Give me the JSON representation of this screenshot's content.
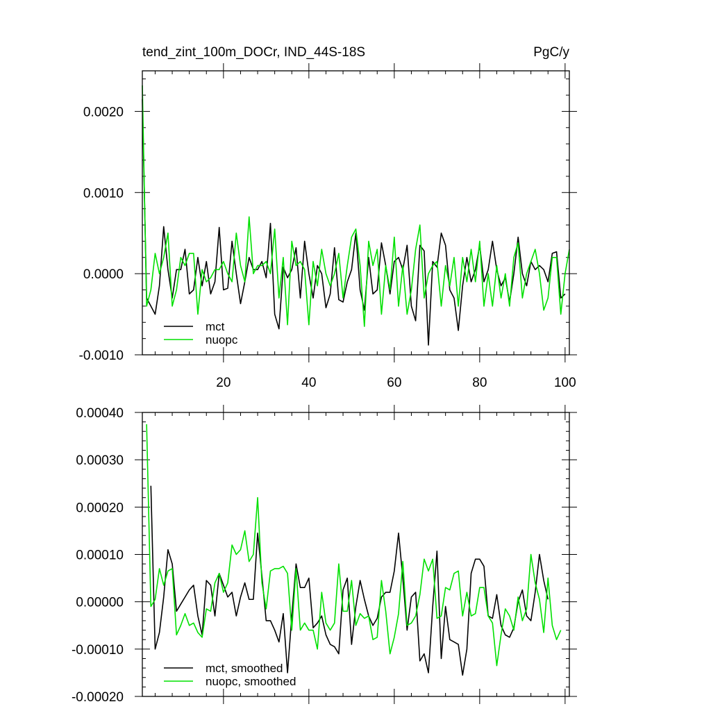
{
  "chart_data": [
    {
      "type": "line",
      "title": "tend_zint_100m_DOCr, IND_44S-18S",
      "units": "PgC/y",
      "xlim": [
        1,
        101
      ],
      "ylim": [
        -0.001,
        0.0025
      ],
      "xticks": [
        "20",
        "40",
        "60",
        "80",
        "100"
      ],
      "yticks": [
        "-0.0010",
        "0.0000",
        "0.0010",
        "0.0020"
      ],
      "legend_position": "bottom-left",
      "series": [
        {
          "name": "mct",
          "color": "#000000",
          "x_start": 1,
          "values": [
            0.00215,
            -0.0003,
            -0.0004,
            -0.0005,
            -0.00015,
            0.00058,
            5e-05,
            -0.0003,
            5e-05,
            5e-05,
            0.0003,
            -0.00025,
            -0.0002,
            0.0002,
            -0.00015,
            0.00015,
            -0.00025,
            -0.0001,
            0.00057,
            -0.0002,
            -0.00018,
            0.0004,
            0.0,
            -0.00037,
            -0.0001,
            0.0002,
            5e-05,
            5e-05,
            0.00015,
            -5e-05,
            0.00062,
            -0.0005,
            -0.00068,
            8e-05,
            -5e-05,
            5e-05,
            0.00032,
            -0.0003,
            0.0004,
            0.0,
            -0.0003,
            0.0001,
            0.0,
            -0.00042,
            -0.00025,
            0.00032,
            -0.00032,
            -0.00035,
            -0.0001,
            5e-05,
            0.0005,
            -0.0002,
            -0.00045,
            0.0002,
            -0.00025,
            -0.0002,
            0.00038,
            0.0001,
            -0.00025,
            0.00015,
            0.0002,
            5e-05,
            0.00035,
            -0.0004,
            -0.00058,
            0.00035,
            0.00028,
            -0.00088,
            0.00015,
            8e-05,
            0.0005,
            0.00035,
            -0.0002,
            -0.0003,
            -0.0007,
            -0.00015,
            0.0002,
            -0.0001,
            5e-05,
            0.00035,
            -0.0001,
            5e-05,
            0.0004,
            5e-05,
            -0.00015,
            -5e-05,
            -0.00035,
            0.0,
            0.00045,
            0.0,
            -0.00015,
            0.00015,
            5e-05,
            0.0001,
            5e-05,
            -0.0001,
            0.00025,
            0.00027,
            -0.0003,
            -0.00025
          ],
          "line_width": 1.6
        },
        {
          "name": "nuopc",
          "color": "#00e000",
          "x_start": 1,
          "values": [
            0.00232,
            -0.0004,
            -0.0002,
            0.00025,
            0.0,
            0.0002,
            0.0005,
            -0.0004,
            -0.0002,
            0.0002,
            0.0001,
            0.00025,
            0.00025,
            -0.0005,
            5e-05,
            -0.0001,
            -5e-05,
            5e-05,
            5e-05,
            0.00015,
            0.0,
            -0.0001,
            0.0005,
            0.0001,
            -0.0001,
            0.0007,
            0.0,
            0.0001,
            0.0001,
            0.00015,
            0.0,
            0.00055,
            -0.0003,
            0.0002,
            -0.00063,
            0.0004,
            0.0001,
            0.00015,
            5e-05,
            -0.00063,
            0.00015,
            -0.00015,
            0.0003,
            0.0,
            -0.00015,
            0.0,
            0.00025,
            -0.0003,
            0.0001,
            0.00045,
            0.00055,
            0.0001,
            -0.00065,
            0.0004,
            0.0001,
            0.0003,
            -0.0005,
            0.0001,
            -0.0002,
            0.00045,
            -0.0004,
            0.0001,
            -0.0005,
            -0.0002,
            0.0003,
            0.0006,
            -0.0003,
            0.0,
            0.0001,
            0.00015,
            -0.0004,
            0.0001,
            -0.00015,
            0.0002,
            -0.0004,
            0.0002,
            -0.0001,
            0.0003,
            -0.0001,
            0.0004,
            -0.0004,
            0.0,
            -0.0004,
            0.0001,
            -0.0003,
            0.0,
            -0.0004,
            0.0002,
            0.00038,
            -0.0003,
            0.0,
            0.00015,
            0.0003,
            0.0,
            -0.00045,
            -0.0003,
            0.0002,
            0.0002,
            -0.0005,
            0.0,
            0.0003
          ],
          "line_width": 1.6
        }
      ]
    },
    {
      "type": "line",
      "xlim": [
        1,
        101
      ],
      "ylim": [
        -0.0002,
        0.0004
      ],
      "xticks": [
        "20",
        "40",
        "60",
        "80",
        "100"
      ],
      "show_xtick_labels": false,
      "yticks": [
        "-0.00020",
        "-0.00010",
        "0.00000",
        "0.00010",
        "0.00020",
        "0.00030",
        "0.00040"
      ],
      "legend_position": "bottom-left",
      "series": [
        {
          "name": "mct, smoothed",
          "color": "#000000",
          "x_start": 3,
          "values": [
            0.000245,
            -0.0001,
            -6.5e-05,
            1e-05,
            0.00011,
            8e-05,
            -2e-05,
            -5e-06,
            1e-05,
            2.5e-05,
            3.5e-05,
            -3e-05,
            -7e-05,
            4.5e-05,
            3.5e-05,
            -3e-05,
            6e-05,
            3.5e-05,
            1e-05,
            2e-05,
            -3e-05,
            1e-05,
            4e-05,
            5e-06,
            5e-06,
            0.000145,
            5.5e-05,
            -4e-05,
            -4e-05,
            -6e-05,
            -8.5e-05,
            -2.5e-05,
            -0.00015,
            -3e-05,
            8e-05,
            3e-05,
            3e-05,
            5e-05,
            -5.5e-05,
            -4.5e-05,
            -3e-05,
            -7e-05,
            -9e-05,
            -9.5e-05,
            -0.00011,
            2.5e-05,
            5e-05,
            -9e-05,
            -1e-05,
            4.5e-05,
            5e-06,
            -3e-05,
            -5e-05,
            -3.5e-05,
            1e-05,
            2e-05,
            2e-05,
            6.5e-05,
            0.000145,
            5e-05,
            -6e-05,
            1e-05,
            2e-05,
            -0.000125,
            -0.00011,
            -0.00015,
            -1e-05,
            0.000107,
            -0.00012,
            -1e-05,
            -8e-05,
            -8.5e-05,
            -9e-05,
            -0.000155,
            -0.0001,
            6e-05,
            9e-05,
            9e-05,
            7.5e-05,
            -3e-05,
            -3.5e-05,
            1.5e-05,
            -5e-05,
            -7e-05,
            -7.5e-05,
            -5.5e-05,
            0.0,
            2.5e-05,
            -3e-05,
            -4e-05,
            2e-05,
            0.0001,
            4.5e-05,
            5e-06
          ],
          "line_width": 1.6
        },
        {
          "name": "nuopc, smoothed",
          "color": "#00e000",
          "x_start": 2,
          "values": [
            0.000375,
            -1e-05,
            5e-06,
            7e-05,
            3.5e-05,
            6.5e-05,
            7e-05,
            -7e-05,
            -5e-05,
            -2.5e-05,
            -5e-05,
            -4.5e-05,
            -6.5e-05,
            -7.5e-05,
            -1.5e-05,
            -2e-05,
            4e-05,
            6e-05,
            2e-05,
            4e-05,
            0.00012,
            0.0001,
            0.00011,
            0.00015,
            8.5e-05,
            0.0001,
            0.00022,
            4e-05,
            -1.5e-05,
            6.5e-05,
            7e-05,
            7e-05,
            7.5e-05,
            6e-05,
            -6e-05,
            7e-05,
            -6e-05,
            -4.5e-05,
            -6e-05,
            -6e-05,
            -0.0001,
            2e-05,
            -4.5e-05,
            -6e-05,
            -4.5e-05,
            8e-05,
            -2e-05,
            -2e-05,
            4.5e-05,
            -5e-05,
            -2.5e-05,
            -3.5e-05,
            -3e-05,
            -8e-05,
            -7.5e-05,
            4.5e-05,
            -2e-05,
            -0.00011,
            -7.5e-05,
            -2.5e-05,
            8.5e-05,
            -5e-05,
            -4.5e-05,
            -3e-05,
            1.5e-05,
            9e-05,
            6.5e-05,
            9e-05,
            -3.5e-05,
            -3e-05,
            3e-05,
            2.5e-05,
            6e-05,
            6.5e-05,
            -3e-05,
            2e-05,
            -3e-05,
            -2.5e-05,
            3e-05,
            3e-05,
            -3e-05,
            -4.5e-05,
            -0.000135,
            -7e-05,
            -1.5e-05,
            -3e-05,
            -6e-05,
            1e-05,
            -4e-05,
            -1.5e-05,
            0.0001,
            4e-05,
            5e-06,
            -6.5e-05,
            5e-05,
            -5e-05,
            -8e-05,
            -6e-05
          ],
          "line_width": 1.6
        }
      ]
    }
  ]
}
